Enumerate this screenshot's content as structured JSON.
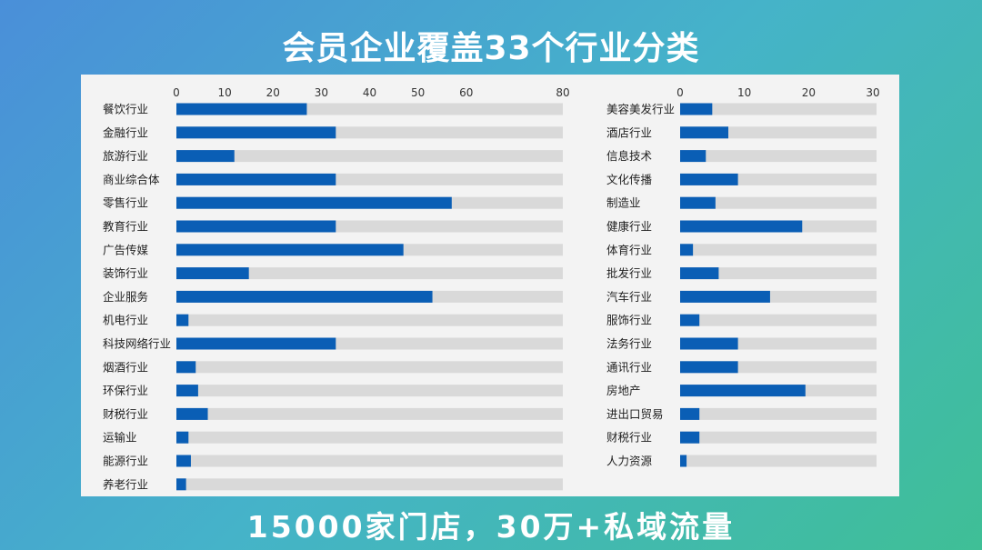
{
  "header": {
    "title": "会员企业覆盖33个行业分类"
  },
  "footer": {
    "text": "15000家门店，30万+私域流量"
  },
  "colors": {
    "bar": "#0a5eb5",
    "track": "#d9d9d9",
    "panel": "#f3f3f3"
  },
  "chart_data": [
    {
      "type": "bar",
      "orientation": "horizontal",
      "xlim": [
        0,
        80
      ],
      "ticks": [
        0,
        10,
        20,
        30,
        40,
        50,
        60,
        80
      ],
      "grid": false,
      "categories": [
        "餐饮行业",
        "金融行业",
        "旅游行业",
        "商业综合体",
        "零售行业",
        "教育行业",
        "广告传媒",
        "装饰行业",
        "企业服务",
        "机电行业",
        "科技网络行业",
        "烟酒行业",
        "环保行业",
        "财税行业",
        "运输业",
        "能源行业",
        "养老行业"
      ],
      "values": [
        27,
        33,
        12,
        33,
        57,
        33,
        47,
        15,
        53,
        2.5,
        33,
        4,
        4.5,
        6.5,
        2.5,
        3,
        2
      ]
    },
    {
      "type": "bar",
      "orientation": "horizontal",
      "xlim": [
        0,
        30
      ],
      "ticks": [
        0,
        10,
        20,
        30
      ],
      "grid": false,
      "categories": [
        "美容美发行业",
        "酒店行业",
        "信息技术",
        "文化传播",
        "制造业",
        "健康行业",
        "体育行业",
        "批发行业",
        "汽车行业",
        "服饰行业",
        "法务行业",
        "通讯行业",
        "房地产",
        "进出口贸易",
        "财税行业",
        "人力资源"
      ],
      "values": [
        5,
        7.5,
        4,
        9,
        5.5,
        19,
        2,
        6,
        14,
        3,
        9,
        9,
        19.5,
        3,
        3,
        1
      ]
    }
  ]
}
